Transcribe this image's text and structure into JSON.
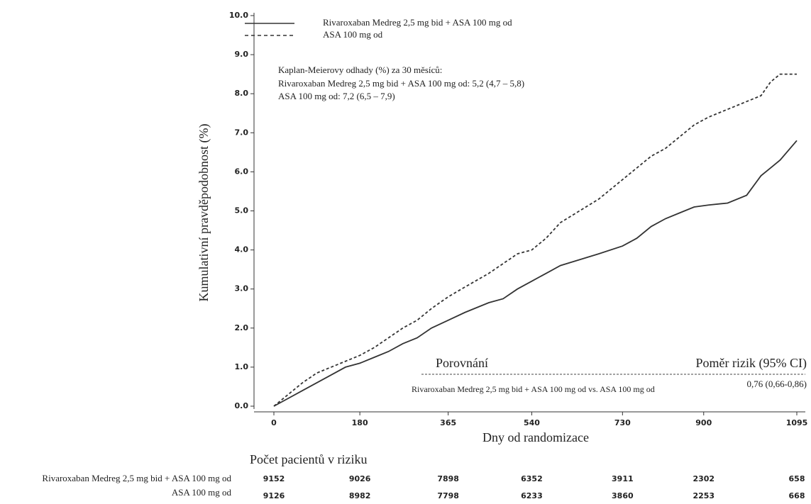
{
  "chart_data": {
    "type": "line",
    "xlabel": "Dny od randomizace",
    "ylabel": "Kumulativní pravděpodobnost (%)",
    "x": [
      0,
      30,
      60,
      90,
      120,
      150,
      180,
      210,
      240,
      270,
      300,
      330,
      365,
      400,
      450,
      480,
      510,
      540,
      570,
      600,
      640,
      680,
      730,
      760,
      790,
      820,
      850,
      880,
      910,
      950,
      990,
      1020,
      1040,
      1060,
      1095
    ],
    "series": [
      {
        "name": "Rivaroxaban Medreg 2,5 mg bid + ASA 100 mg od",
        "color": "#333333",
        "dash": "solid",
        "values": [
          0,
          0.2,
          0.4,
          0.6,
          0.8,
          1.0,
          1.1,
          1.25,
          1.4,
          1.6,
          1.75,
          2.0,
          2.2,
          2.4,
          2.65,
          2.75,
          3.0,
          3.2,
          3.4,
          3.6,
          3.75,
          3.9,
          4.1,
          4.3,
          4.6,
          4.8,
          4.95,
          5.1,
          5.15,
          5.2,
          5.4,
          5.9,
          6.1,
          6.3,
          6.8
        ]
      },
      {
        "name": "ASA 100 mg od",
        "color": "#333333",
        "dash": "dashed",
        "values": [
          0,
          0.3,
          0.6,
          0.85,
          1.0,
          1.15,
          1.3,
          1.5,
          1.75,
          2.0,
          2.2,
          2.5,
          2.8,
          3.05,
          3.4,
          3.65,
          3.9,
          4.0,
          4.3,
          4.7,
          5.0,
          5.3,
          5.8,
          6.1,
          6.4,
          6.6,
          6.9,
          7.2,
          7.4,
          7.6,
          7.8,
          7.95,
          8.3,
          8.5,
          8.5
        ]
      }
    ],
    "xlim": [
      0,
      1095
    ],
    "xticks": [
      0,
      180,
      365,
      540,
      730,
      900,
      1095
    ],
    "ylim": [
      0,
      10
    ],
    "yticks": [
      {
        "value": 0,
        "label": "0.0"
      },
      {
        "value": 1,
        "label": "1.0"
      },
      {
        "value": 2,
        "label": "2.0"
      },
      {
        "value": 3,
        "label": "3.0"
      },
      {
        "value": 4,
        "label": "4.0"
      },
      {
        "value": 5,
        "label": "5.0"
      },
      {
        "value": 6,
        "label": "6.0"
      },
      {
        "value": 7,
        "label": "7.0"
      },
      {
        "value": 8,
        "label": "8.0"
      },
      {
        "value": 9,
        "label": "9.0"
      },
      {
        "value": 10,
        "label": "10.0"
      }
    ],
    "legend": "top-left",
    "annotation": [
      "Kaplan-Meierovy odhady (%) za 30 měsíců:",
      "Rivaroxaban Medreg 2,5 mg bid + ASA 100 mg od: 5,2 (4,7 – 5,8)",
      "ASA 100 mg od: 7,2 (6,5 – 7,9)"
    ],
    "comparison": {
      "header": [
        "Porovnání",
        "Poměr rizik (95% CI)"
      ],
      "row": [
        "Rivaroxaban Medreg 2,5 mg bid + ASA 100 mg od vs. ASA 100 mg od",
        "0,76 (0,66-0,86)"
      ]
    },
    "risk_table": {
      "title": "Počet pacientů v riziku",
      "rows": [
        {
          "label": "Rivaroxaban Medreg 2,5 mg bid + ASA 100 mg od",
          "values": [
            9152,
            9026,
            7898,
            6352,
            3911,
            2302,
            658
          ]
        },
        {
          "label": "ASA 100 mg od",
          "values": [
            9126,
            8982,
            7798,
            6233,
            3860,
            2253,
            668
          ]
        }
      ]
    }
  }
}
